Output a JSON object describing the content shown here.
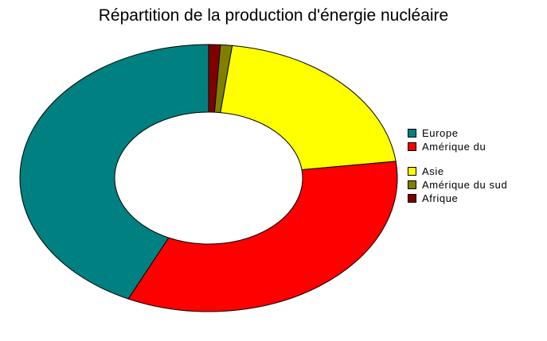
{
  "chart_data": {
    "type": "pie",
    "variant": "donut",
    "title": "Répartition de la production d'énergie nucléaire",
    "legend_position": "right",
    "categories": [
      "Europe",
      "Amérique  du",
      "Asie",
      "Amérique du sud",
      "Afrique"
    ],
    "values": [
      43,
      34,
      21,
      1,
      1
    ],
    "colors": [
      "#008080",
      "#ff0000",
      "#ffff00",
      "#808000",
      "#800000"
    ]
  }
}
